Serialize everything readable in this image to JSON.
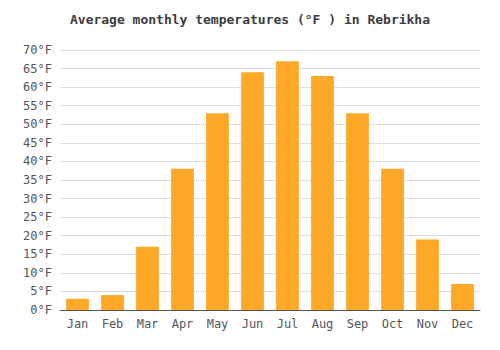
{
  "chart_data": {
    "type": "bar",
    "title": "Average monthly temperatures (°F ) in Rebrikha",
    "categories": [
      "Jan",
      "Feb",
      "Mar",
      "Apr",
      "May",
      "Jun",
      "Jul",
      "Aug",
      "Sep",
      "Oct",
      "Nov",
      "Dec"
    ],
    "values": [
      3,
      4,
      17,
      38,
      53,
      64,
      67,
      63,
      53,
      38,
      19,
      7
    ],
    "color": "#FFA726",
    "ylim": [
      0,
      70
    ],
    "yticks": [
      {
        "value": 0,
        "label": "0°F"
      },
      {
        "value": 5,
        "label": "5°F"
      },
      {
        "value": 10,
        "label": "10°F"
      },
      {
        "value": 15,
        "label": "15°F"
      },
      {
        "value": 20,
        "label": "20°F"
      },
      {
        "value": 25,
        "label": "25°F"
      },
      {
        "value": 30,
        "label": "30°F"
      },
      {
        "value": 35,
        "label": "35°F"
      },
      {
        "value": 40,
        "label": "40°F"
      },
      {
        "value": 45,
        "label": "45°F"
      },
      {
        "value": 50,
        "label": "50°F"
      },
      {
        "value": 55,
        "label": "55°F"
      },
      {
        "value": 60,
        "label": "60°F"
      },
      {
        "value": 65,
        "label": "65°F"
      },
      {
        "value": 70,
        "label": "70°F"
      }
    ],
    "grid": true
  }
}
